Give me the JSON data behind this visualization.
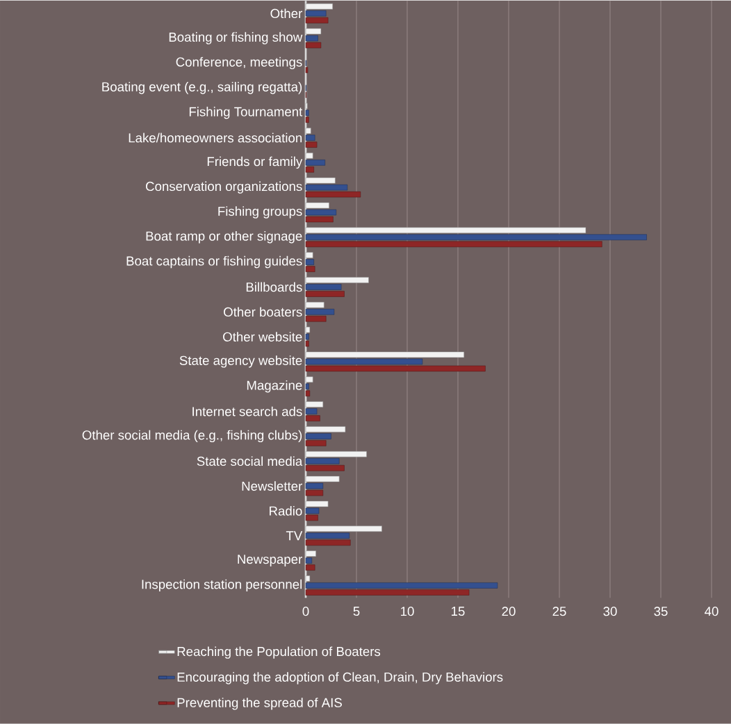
{
  "chart_data": {
    "type": "bar",
    "orientation": "horizontal",
    "categories": [
      "Other",
      "Boating or fishing show",
      "Conference, meetings",
      "Boating event (e.g., sailing regatta)",
      "Fishing Tournament",
      "Lake/homeowners association",
      "Friends or family",
      "Conservation organizations",
      "Fishing groups",
      "Boat ramp or other signage",
      "Boat captains or fishing guides",
      "Billboards",
      "Other boaters",
      "Other website",
      "State agency website",
      "Magazine",
      "Internet search ads",
      "Other social media (e.g., fishing clubs)",
      "State social media",
      "Newsletter",
      "Radio",
      "TV",
      "Newspaper",
      "Inspection station personnel"
    ],
    "series": [
      {
        "name": "Reaching the Population of Boaters",
        "color": "#f2f2f2",
        "values": [
          2.65,
          1.5,
          null,
          null,
          0.15,
          0.5,
          0.7,
          2.9,
          2.3,
          27.6,
          0.7,
          6.2,
          1.8,
          0.4,
          15.6,
          0.7,
          1.7,
          3.9,
          6.0,
          3.3,
          2.2,
          7.5,
          1.0,
          0.4
        ]
      },
      {
        "name": "Encouraging the adoption of Clean, Drain, Dry Behaviors",
        "color": "#34508f",
        "values": [
          2.0,
          1.2,
          0.05,
          0.05,
          0.3,
          0.9,
          1.9,
          4.1,
          3.0,
          33.6,
          0.8,
          3.5,
          2.8,
          0.3,
          11.5,
          0.3,
          1.1,
          2.5,
          3.3,
          1.7,
          1.3,
          4.3,
          0.6,
          18.9
        ]
      },
      {
        "name": "Preventing the spread of AIS",
        "color": "#8e2626",
        "values": [
          2.2,
          1.5,
          0.2,
          0.05,
          0.3,
          1.1,
          0.8,
          5.4,
          2.7,
          29.2,
          0.9,
          3.8,
          2.0,
          0.3,
          17.7,
          0.4,
          1.4,
          2.0,
          3.8,
          1.7,
          1.2,
          4.4,
          0.9,
          16.1
        ]
      }
    ],
    "xlim": [
      0,
      40
    ],
    "xticks": [
      0,
      5,
      10,
      15,
      20,
      25,
      30,
      35,
      40
    ],
    "grid": "x",
    "legend": "bottom"
  }
}
